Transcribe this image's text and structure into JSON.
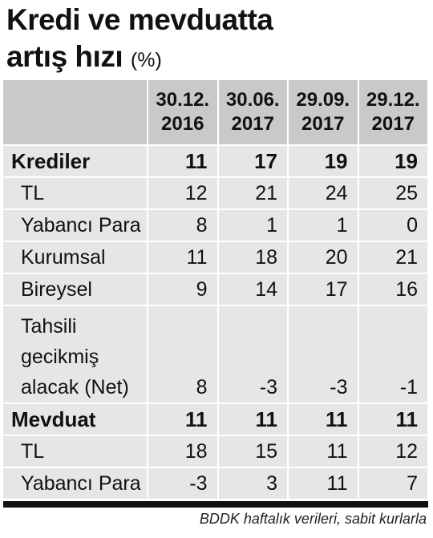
{
  "title": {
    "line1": "Kredi ve mevduatta",
    "line2": "artış hızı",
    "unit": "(%)"
  },
  "source": "BDDK haftalık verileri, sabit kurlarla",
  "chart_data": {
    "type": "table",
    "columns": [
      "30.12. 2016",
      "30.06. 2017",
      "29.09. 2017",
      "29.12. 2017"
    ],
    "rows": [
      {
        "label": "Krediler",
        "values": [
          "11",
          "17",
          "19",
          "19"
        ],
        "emphasis": "bold"
      },
      {
        "label": "TL",
        "values": [
          "12",
          "21",
          "24",
          "25"
        ]
      },
      {
        "label": "Yabancı Para",
        "values": [
          "8",
          "1",
          "1",
          "0"
        ]
      },
      {
        "label": "Kurumsal",
        "values": [
          "11",
          "18",
          "20",
          "21"
        ]
      },
      {
        "label": "Bireysel",
        "values": [
          "9",
          "14",
          "17",
          "16"
        ]
      },
      {
        "label": "Tahsili gecikmiş alacak (Net)",
        "values": [
          "8",
          "-3",
          "-3",
          "-1"
        ]
      },
      {
        "label": "Mevduat",
        "values": [
          "11",
          "11",
          "11",
          "11"
        ],
        "emphasis": "bold"
      },
      {
        "label": "TL",
        "values": [
          "18",
          "15",
          "11",
          "12"
        ]
      },
      {
        "label": "Yabancı Para",
        "values": [
          "-3",
          "3",
          "11",
          "7"
        ]
      }
    ]
  },
  "colors": {
    "header_bg": "#c9c9c9",
    "row_bg": "#e6e6e6",
    "rule": "#111111"
  }
}
